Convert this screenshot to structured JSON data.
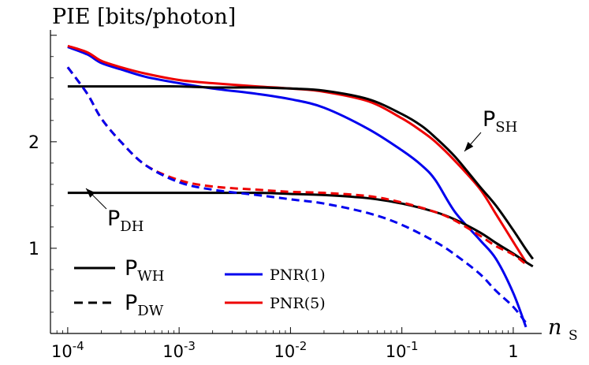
{
  "chart_data": {
    "type": "line",
    "title": "",
    "ylabel": "PIE [bits/photon]",
    "xlabel_main": "n",
    "xlabel_sub": "S",
    "xscale": "log",
    "xlim": [
      7e-05,
      1.8
    ],
    "ylim": [
      0.2,
      3.05
    ],
    "grid": false,
    "x_ticks": [
      {
        "value": 0.0001,
        "base": "10",
        "exp": "-4"
      },
      {
        "value": 0.001,
        "base": "10",
        "exp": "-3"
      },
      {
        "value": 0.01,
        "base": "10",
        "exp": "-2"
      },
      {
        "value": 0.1,
        "base": "10",
        "exp": "-1"
      },
      {
        "value": 1,
        "base": "1",
        "exp": ""
      }
    ],
    "y_ticks": [
      {
        "value": 1,
        "label": "1"
      },
      {
        "value": 2,
        "label": "2"
      }
    ],
    "series": [
      {
        "name": "PNR(1) solid",
        "color": "#0000ee",
        "dash": false,
        "x": [
          0.0001,
          0.00015,
          0.0002,
          0.0003,
          0.0005,
          0.001,
          0.002,
          0.005,
          0.01,
          0.02,
          0.05,
          0.1,
          0.15,
          0.2,
          0.3,
          0.5,
          0.7,
          1.0,
          1.3
        ],
        "y": [
          2.89,
          2.82,
          2.74,
          2.68,
          2.61,
          2.55,
          2.5,
          2.45,
          2.4,
          2.32,
          2.12,
          1.92,
          1.78,
          1.64,
          1.34,
          1.08,
          0.9,
          0.58,
          0.26
        ]
      },
      {
        "name": "PNR(5) solid",
        "color": "#ee0000",
        "dash": false,
        "x": [
          0.0001,
          0.00015,
          0.0002,
          0.0003,
          0.0005,
          0.001,
          0.002,
          0.005,
          0.01,
          0.02,
          0.05,
          0.1,
          0.15,
          0.2,
          0.3,
          0.5,
          0.7,
          1.0,
          1.3
        ],
        "y": [
          2.9,
          2.84,
          2.76,
          2.7,
          2.64,
          2.58,
          2.55,
          2.52,
          2.5,
          2.47,
          2.38,
          2.22,
          2.1,
          2.0,
          1.82,
          1.56,
          1.32,
          1.06,
          0.87
        ]
      },
      {
        "name": "PSH",
        "color": "#000000",
        "dash": false,
        "x": [
          0.0001,
          0.0005,
          0.001,
          0.002,
          0.005,
          0.01,
          0.02,
          0.05,
          0.1,
          0.15,
          0.2,
          0.3,
          0.5,
          0.7,
          1.0,
          1.3,
          1.5
        ],
        "y": [
          2.52,
          2.52,
          2.52,
          2.51,
          2.51,
          2.5,
          2.48,
          2.4,
          2.26,
          2.15,
          2.04,
          1.86,
          1.58,
          1.4,
          1.17,
          0.99,
          0.9
        ]
      },
      {
        "name": "PDH",
        "color": "#000000",
        "dash": false,
        "x": [
          0.0001,
          0.001,
          0.005,
          0.01,
          0.02,
          0.05,
          0.1,
          0.2,
          0.3,
          0.5,
          0.7,
          1.0,
          1.3,
          1.5
        ],
        "y": [
          1.52,
          1.52,
          1.52,
          1.51,
          1.5,
          1.47,
          1.42,
          1.34,
          1.27,
          1.15,
          1.05,
          0.95,
          0.87,
          0.83
        ]
      },
      {
        "name": "PNR(5) dashed",
        "color": "#ee0000",
        "dash": true,
        "x": [
          0.0001,
          0.00015,
          0.0002,
          0.0003,
          0.0005,
          0.001,
          0.002,
          0.005,
          0.01,
          0.02,
          0.05,
          0.1,
          0.2,
          0.3,
          0.5,
          0.7,
          1.0,
          1.3
        ],
        "y": [
          2.7,
          2.45,
          2.22,
          2.0,
          1.78,
          1.64,
          1.58,
          1.55,
          1.53,
          1.52,
          1.49,
          1.43,
          1.34,
          1.26,
          1.12,
          1.02,
          0.94,
          0.85
        ]
      },
      {
        "name": "PNR(1) dashed",
        "color": "#0000ee",
        "dash": true,
        "x": [
          0.0001,
          0.00015,
          0.0002,
          0.0003,
          0.0005,
          0.001,
          0.002,
          0.005,
          0.01,
          0.02,
          0.05,
          0.1,
          0.2,
          0.3,
          0.5,
          0.7,
          1.0,
          1.3
        ],
        "y": [
          2.7,
          2.45,
          2.22,
          2.0,
          1.78,
          1.62,
          1.55,
          1.5,
          1.46,
          1.42,
          1.33,
          1.22,
          1.06,
          0.94,
          0.76,
          0.6,
          0.45,
          0.3
        ]
      }
    ],
    "annotations": [
      {
        "base": "P",
        "sub": "SH",
        "points_to_x": 0.22,
        "points_to_y": 2.02
      },
      {
        "base": "P",
        "sub": "DH",
        "points_to_x": 0.00012,
        "points_to_y": 1.52
      }
    ],
    "legend": {
      "placement": "bottom-left",
      "entries": [
        {
          "base": "P",
          "sub": "WH",
          "style": "solid",
          "color": "#000000"
        },
        {
          "base": "P",
          "sub": "DW",
          "style": "dashed",
          "color": "#000000"
        },
        {
          "label": "PNR(1)",
          "style": "solid",
          "color": "#0000ee"
        },
        {
          "label": "PNR(5)",
          "style": "solid",
          "color": "#ee0000"
        }
      ]
    }
  }
}
